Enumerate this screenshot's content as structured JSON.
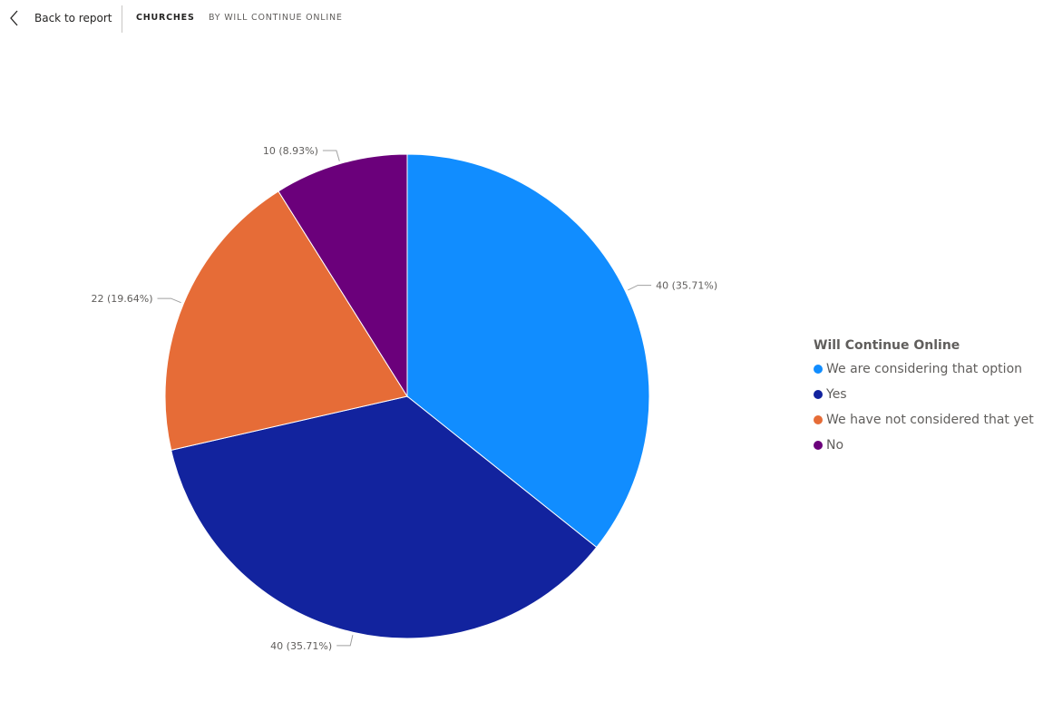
{
  "nav": {
    "back_label": "Back to report",
    "breadcrumb_primary": "CHURCHES",
    "breadcrumb_secondary": "BY WILL CONTINUE ONLINE"
  },
  "chart_data": {
    "type": "pie",
    "legend_title": "Will Continue Online",
    "legend_position": "right",
    "slices": [
      {
        "label": "We are considering that option",
        "value": 40,
        "percent": 35.71,
        "data_label": "40 (35.71%)",
        "color": "#118dff"
      },
      {
        "label": "Yes",
        "value": 40,
        "percent": 35.71,
        "data_label": "40 (35.71%)",
        "color": "#12239e"
      },
      {
        "label": "We have not considered that yet",
        "value": 22,
        "percent": 19.64,
        "data_label": "22 (19.64%)",
        "color": "#e66c37"
      },
      {
        "label": "No",
        "value": 10,
        "percent": 8.93,
        "data_label": "10 (8.93%)",
        "color": "#6b007b"
      }
    ]
  }
}
